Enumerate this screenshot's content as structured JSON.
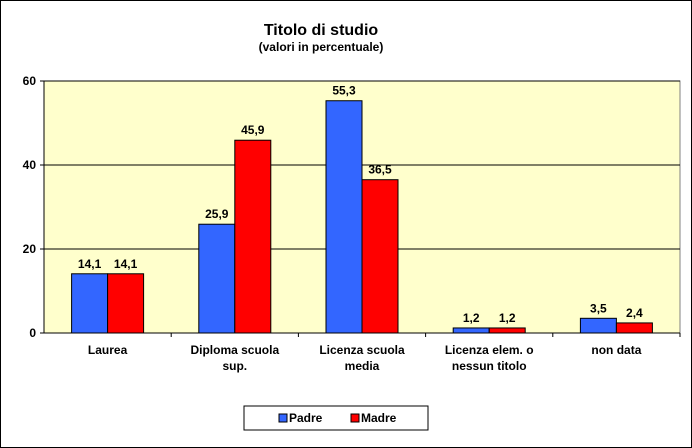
{
  "chart_data": {
    "type": "bar",
    "title": "Titolo di studio",
    "subtitle": "(valori in percentuale)",
    "categories": [
      [
        "Laurea"
      ],
      [
        "Diploma scuola",
        "sup."
      ],
      [
        "Licenza scuola",
        "media"
      ],
      [
        "Licenza elem. o",
        "nessun titolo"
      ],
      [
        "non data"
      ]
    ],
    "series": [
      {
        "name": "Padre",
        "values": [
          14.1,
          25.9,
          55.3,
          1.2,
          3.5
        ],
        "labels": [
          "14,1",
          "25,9",
          "55,3",
          "1,2",
          "3,5"
        ],
        "color": "#3366ff"
      },
      {
        "name": "Madre",
        "values": [
          14.1,
          45.9,
          36.5,
          1.2,
          2.4
        ],
        "labels": [
          "14,1",
          "45,9",
          "36,5",
          "1,2",
          "2,4"
        ],
        "color": "#ff0000"
      }
    ],
    "ylim": [
      0,
      60
    ],
    "yticks": [
      0,
      20,
      40,
      60
    ],
    "grid": true,
    "plot_background": "#ffffcc",
    "legend_position": "bottom"
  }
}
